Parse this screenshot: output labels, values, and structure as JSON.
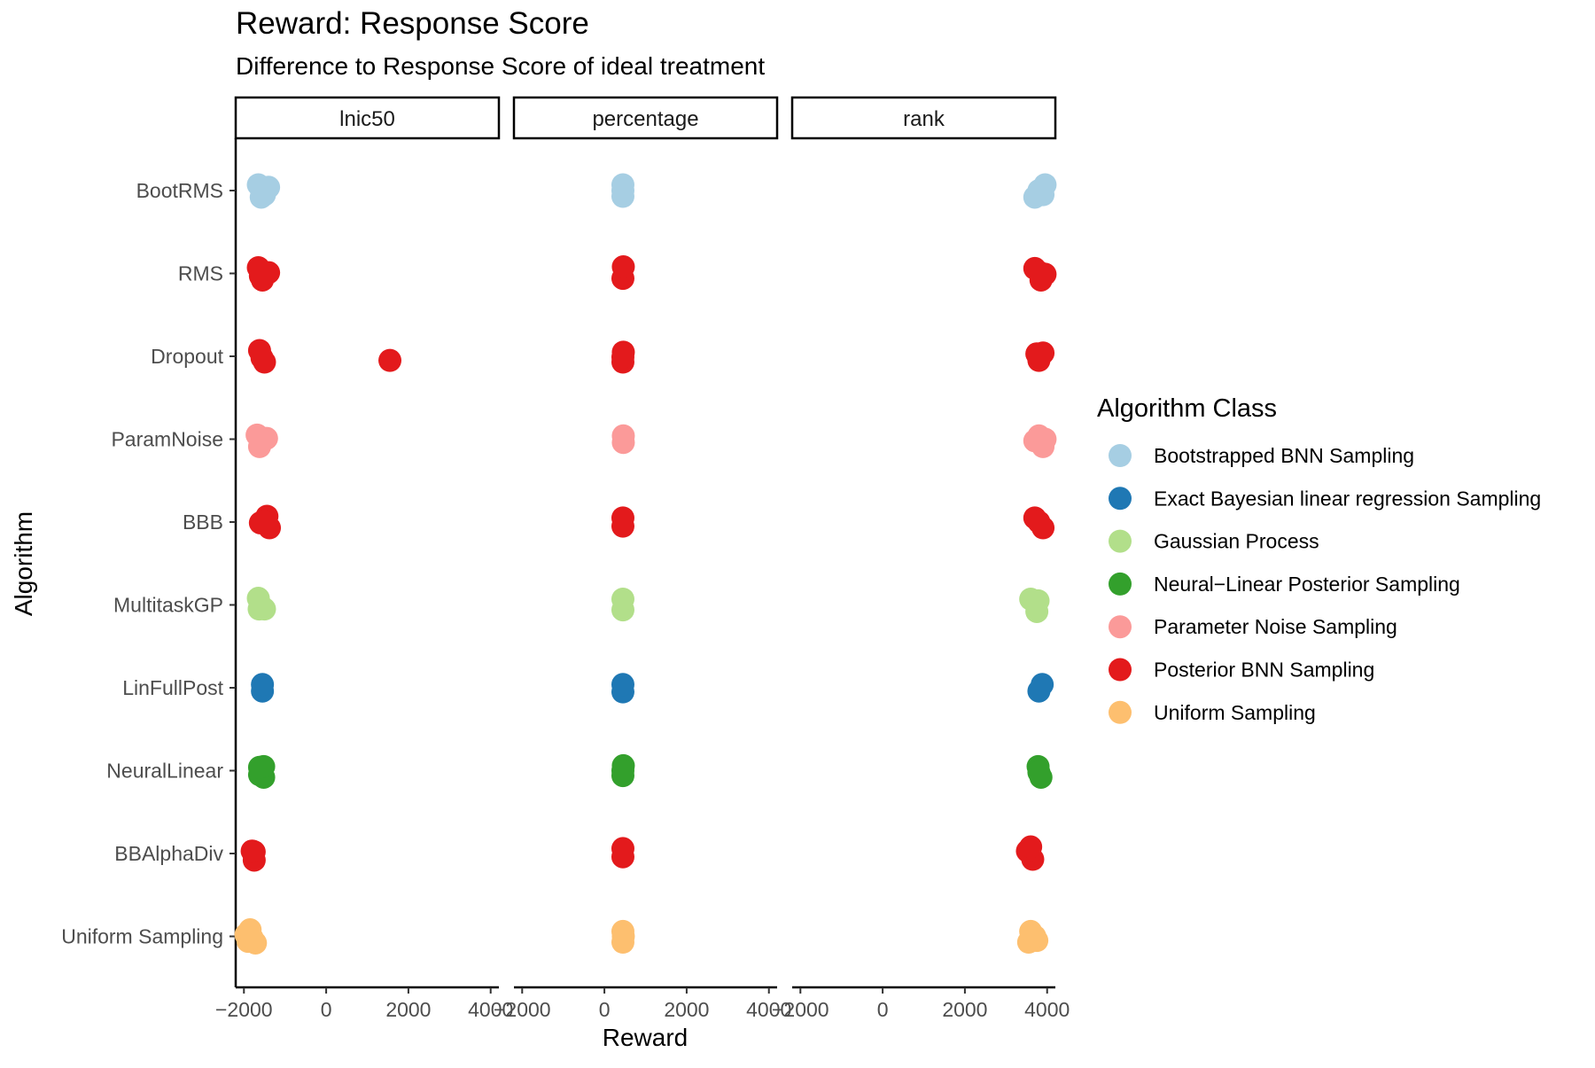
{
  "chart_data": {
    "type": "scatter",
    "title": "Reward: Response Score",
    "subtitle": "Difference to Response Score of ideal treatment",
    "xlabel": "Reward",
    "ylabel": "Algorithm",
    "xlim": [
      -2200,
      4200
    ],
    "xticks": [
      -2000,
      0,
      2000,
      4000
    ],
    "xtick_labels": [
      "−2000",
      "0",
      "2000",
      "4000"
    ],
    "grid": false,
    "legend_position": "right",
    "legend_title": "Algorithm Class",
    "facets": [
      "lnic50",
      "percentage",
      "rank"
    ],
    "algorithms": [
      "BootRMS",
      "RMS",
      "Dropout",
      "ParamNoise",
      "BBB",
      "MultitaskGP",
      "LinFullPost",
      "NeuralLinear",
      "BBAlphaDiv",
      "Uniform Sampling"
    ],
    "classes": [
      {
        "name": "Bootstrapped BNN Sampling",
        "color": "#a6cee3"
      },
      {
        "name": "Exact Bayesian linear regression Sampling",
        "color": "#1f78b4"
      },
      {
        "name": "Gaussian Process",
        "color": "#b2df8a"
      },
      {
        "name": "Neural−Linear Posterior Sampling",
        "color": "#33a02c"
      },
      {
        "name": "Parameter Noise Sampling",
        "color": "#fb9a99"
      },
      {
        "name": "Posterior BNN Sampling",
        "color": "#e31a1c"
      },
      {
        "name": "Uniform Sampling",
        "color": "#fdbf6f"
      }
    ],
    "algorithm_class": {
      "BootRMS": "Bootstrapped BNN Sampling",
      "RMS": "Posterior BNN Sampling",
      "Dropout": "Posterior BNN Sampling",
      "ParamNoise": "Parameter Noise Sampling",
      "BBB": "Posterior BNN Sampling",
      "MultitaskGP": "Gaussian Process",
      "LinFullPost": "Exact Bayesian linear regression Sampling",
      "NeuralLinear": "Neural−Linear Posterior Sampling",
      "BBAlphaDiv": "Posterior BNN Sampling",
      "Uniform Sampling": "Uniform Sampling"
    },
    "points": {
      "lnic50": {
        "BootRMS": [
          [
            -1580,
            0.08
          ],
          [
            -1400,
            -0.04
          ],
          [
            -1650,
            -0.07
          ],
          [
            -1500,
            0.05
          ]
        ],
        "RMS": [
          [
            -1550,
            0.08
          ],
          [
            -1400,
            -0.01
          ],
          [
            -1650,
            -0.07
          ],
          [
            -1600,
            0.03
          ]
        ],
        "Dropout": [
          [
            -1500,
            0.07
          ],
          [
            -1620,
            -0.07
          ],
          [
            -1560,
            0.02
          ],
          [
            1550,
            0.05
          ]
        ],
        "ParamNoise": [
          [
            -1620,
            0.09
          ],
          [
            -1450,
            -0.01
          ],
          [
            -1680,
            -0.05
          ],
          [
            -1550,
            0.02
          ]
        ],
        "BBB": [
          [
            -1380,
            0.07
          ],
          [
            -1440,
            -0.07
          ],
          [
            -1600,
            0.01
          ],
          [
            -1500,
            0.0
          ]
        ],
        "MultitaskGP": [
          [
            -1630,
            0.05
          ],
          [
            -1500,
            0.05
          ],
          [
            -1650,
            -0.08
          ],
          [
            -1600,
            0.0
          ]
        ],
        "LinFullPost": [
          [
            -1550,
            0.04
          ],
          [
            -1550,
            -0.04
          ]
        ],
        "NeuralLinear": [
          [
            -1520,
            0.08
          ],
          [
            -1620,
            0.05
          ],
          [
            -1520,
            -0.05
          ],
          [
            -1620,
            -0.04
          ]
        ],
        "BBAlphaDiv": [
          [
            -1750,
            0.08
          ],
          [
            -1750,
            -0.02
          ],
          [
            -1800,
            -0.03
          ]
        ],
        "Uniform Sampling": [
          [
            -1720,
            0.08
          ],
          [
            -1900,
            0.06
          ],
          [
            -1950,
            -0.02
          ],
          [
            -1850,
            -0.08
          ],
          [
            -1800,
            0.02
          ]
        ]
      },
      "percentage": {
        "BootRMS": [
          [
            450,
            0.07
          ],
          [
            450,
            -0.07
          ],
          [
            450,
            0.0
          ]
        ],
        "RMS": [
          [
            450,
            0.06
          ],
          [
            460,
            -0.08
          ]
        ],
        "Dropout": [
          [
            450,
            0.07
          ],
          [
            460,
            -0.05
          ],
          [
            450,
            0.01
          ]
        ],
        "ParamNoise": [
          [
            460,
            0.04
          ],
          [
            460,
            -0.04
          ]
        ],
        "BBB": [
          [
            450,
            0.05
          ],
          [
            450,
            -0.05
          ]
        ],
        "MultitaskGP": [
          [
            450,
            0.06
          ],
          [
            450,
            -0.07
          ]
        ],
        "LinFullPost": [
          [
            450,
            0.05
          ],
          [
            450,
            -0.04
          ]
        ],
        "NeuralLinear": [
          [
            450,
            0.06
          ],
          [
            460,
            -0.06
          ],
          [
            450,
            0.0
          ]
        ],
        "BBAlphaDiv": [
          [
            450,
            0.04
          ],
          [
            450,
            -0.06
          ]
        ],
        "Uniform Sampling": [
          [
            450,
            0.07
          ],
          [
            450,
            -0.06
          ],
          [
            460,
            0.0
          ]
        ]
      },
      "rank": {
        "BootRMS": [
          [
            3700,
            0.08
          ],
          [
            3900,
            0.05
          ],
          [
            3950,
            -0.07
          ],
          [
            3800,
            0.0
          ]
        ],
        "RMS": [
          [
            3850,
            0.08
          ],
          [
            3950,
            0.01
          ],
          [
            3700,
            -0.06
          ],
          [
            3820,
            -0.01
          ]
        ],
        "Dropout": [
          [
            3800,
            0.05
          ],
          [
            3900,
            -0.04
          ],
          [
            3750,
            -0.03
          ]
        ],
        "ParamNoise": [
          [
            3900,
            0.09
          ],
          [
            3700,
            0.02
          ],
          [
            3800,
            -0.04
          ],
          [
            3950,
            0.0
          ]
        ],
        "BBB": [
          [
            3900,
            0.07
          ],
          [
            3700,
            -0.05
          ],
          [
            3800,
            0.0
          ]
        ],
        "MultitaskGP": [
          [
            3750,
            0.08
          ],
          [
            3600,
            -0.07
          ],
          [
            3780,
            -0.05
          ]
        ],
        "LinFullPost": [
          [
            3800,
            0.04
          ],
          [
            3880,
            -0.04
          ]
        ],
        "NeuralLinear": [
          [
            3850,
            0.08
          ],
          [
            3780,
            -0.05
          ],
          [
            3800,
            0.02
          ]
        ],
        "BBAlphaDiv": [
          [
            3650,
            0.07
          ],
          [
            3520,
            -0.03
          ],
          [
            3600,
            -0.08
          ]
        ],
        "Uniform Sampling": [
          [
            3550,
            0.07
          ],
          [
            3750,
            0.05
          ],
          [
            3600,
            -0.06
          ],
          [
            3700,
            0.0
          ]
        ]
      }
    }
  }
}
